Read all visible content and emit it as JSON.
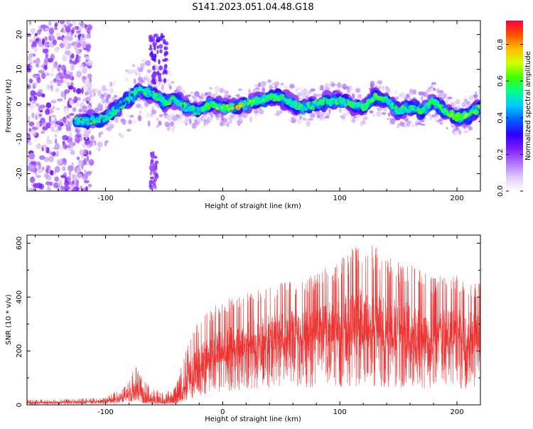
{
  "title": "S141.2023.051.04.48.G18",
  "chart_data": [
    {
      "type": "heatmap",
      "xlabel": "Height of straight line (km)",
      "ylabel": "Frequency (Hz)",
      "xlim": [
        -167,
        220
      ],
      "ylim": [
        -25,
        24
      ],
      "x_ticks": [
        -100,
        0,
        100,
        200
      ],
      "y_ticks": [
        -20,
        -10,
        0,
        10,
        20
      ],
      "colorbar": {
        "label": "Normalized spectral amplitude",
        "range": [
          0,
          0.93
        ],
        "ticks": [
          0.0,
          0.2,
          0.4,
          0.6,
          0.8
        ],
        "colors": [
          "#ffffff",
          "#e0c8f8",
          "#b070ff",
          "#7a1cff",
          "#2a00ff",
          "#0060ff",
          "#00c8ff",
          "#00ff90",
          "#40ff00",
          "#d0ff00",
          "#ffc000",
          "#ff5000",
          "#ff0040"
        ]
      },
      "ridge": {
        "x": [
          -120,
          -100,
          -85,
          -70,
          -60,
          -50,
          -40,
          -30,
          -20,
          -10,
          0,
          10,
          20,
          30,
          40,
          50,
          60,
          70,
          80,
          90,
          100,
          110,
          120,
          130,
          140,
          150,
          160,
          170,
          180,
          190,
          200,
          210,
          220
        ],
        "freq": [
          -5,
          -4,
          0,
          4,
          3,
          1,
          1,
          -1,
          -2,
          0,
          -1,
          -1,
          0,
          1,
          2,
          2,
          0,
          -1,
          0,
          1,
          1,
          0,
          -1,
          2,
          1,
          -2,
          -1,
          -2,
          1,
          -2,
          -4,
          -3,
          -1
        ],
        "peak_amplitude": [
          0.45,
          0.45,
          0.4,
          0.45,
          0.5,
          0.5,
          0.5,
          0.45,
          0.5,
          0.6,
          0.65,
          0.85,
          0.7,
          0.6,
          0.55,
          0.6,
          0.5,
          0.5,
          0.55,
          0.5,
          0.55,
          0.5,
          0.55,
          0.6,
          0.55,
          0.5,
          0.5,
          0.55,
          0.6,
          0.55,
          0.7,
          0.75,
          0.7
        ]
      }
    },
    {
      "type": "line",
      "xlabel": "Height of straight line (km)",
      "ylabel": "SNR (10 * v/v)",
      "xlim": [
        -167,
        220
      ],
      "ylim": [
        0,
        630
      ],
      "x_ticks": [
        -100,
        0,
        100,
        200
      ],
      "y_ticks": [
        0,
        200,
        400,
        600
      ],
      "color": "#ee3333",
      "envelope": {
        "x": [
          -167,
          -130,
          -100,
          -90,
          -80,
          -75,
          -70,
          -60,
          -50,
          -40,
          -30,
          -20,
          -10,
          0,
          20,
          40,
          60,
          80,
          100,
          120,
          140,
          160,
          180,
          200,
          220
        ],
        "baseline": [
          6,
          8,
          10,
          15,
          30,
          45,
          25,
          10,
          8,
          12,
          60,
          110,
          140,
          160,
          180,
          200,
          210,
          215,
          220,
          215,
          210,
          205,
          200,
          200,
          195
        ],
        "upper": [
          18,
          22,
          28,
          55,
          90,
          160,
          110,
          60,
          45,
          70,
          220,
          320,
          360,
          390,
          420,
          440,
          470,
          490,
          540,
          620,
          560,
          520,
          480,
          480,
          460
        ]
      }
    }
  ]
}
